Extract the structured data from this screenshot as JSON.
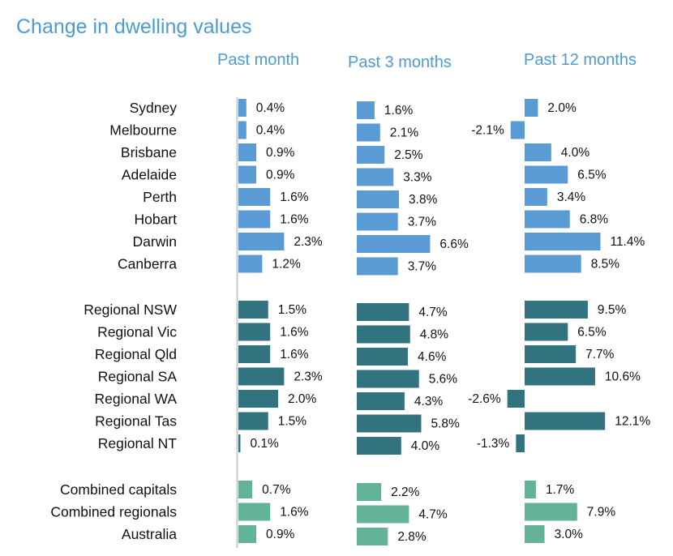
{
  "chart_data": {
    "type": "bar",
    "title": "Change in dwelling values",
    "panels": [
      "Past month",
      "Past 3 months",
      "Past 12 months"
    ],
    "groups": [
      {
        "color": "#5b9bd5",
        "rows": [
          {
            "label": "Sydney",
            "values": [
              0.4,
              1.6,
              2.0
            ],
            "labels": [
              "0.4%",
              "1.6%",
              "2.0%"
            ]
          },
          {
            "label": "Melbourne",
            "values": [
              0.4,
              2.1,
              -2.1
            ],
            "labels": [
              "0.4%",
              "2.1%",
              "-2.1%"
            ]
          },
          {
            "label": "Brisbane",
            "values": [
              0.9,
              2.5,
              4.0
            ],
            "labels": [
              "0.9%",
              "2.5%",
              "4.0%"
            ]
          },
          {
            "label": "Adelaide",
            "values": [
              0.9,
              3.3,
              6.5
            ],
            "labels": [
              "0.9%",
              "3.3%",
              "6.5%"
            ]
          },
          {
            "label": "Perth",
            "values": [
              1.6,
              3.8,
              3.4
            ],
            "labels": [
              "1.6%",
              "3.8%",
              "3.4%"
            ]
          },
          {
            "label": "Hobart",
            "values": [
              1.6,
              3.7,
              6.8
            ],
            "labels": [
              "1.6%",
              "3.7%",
              "6.8%"
            ]
          },
          {
            "label": "Darwin",
            "values": [
              2.3,
              6.6,
              11.4
            ],
            "labels": [
              "2.3%",
              "6.6%",
              "11.4%"
            ]
          },
          {
            "label": "Canberra",
            "values": [
              1.2,
              3.7,
              8.5
            ],
            "labels": [
              "1.2%",
              "3.7%",
              "8.5%"
            ]
          }
        ]
      },
      {
        "color": "#31737f",
        "rows": [
          {
            "label": "Regional NSW",
            "values": [
              1.5,
              4.7,
              9.5
            ],
            "labels": [
              "1.5%",
              "4.7%",
              "9.5%"
            ]
          },
          {
            "label": "Regional Vic",
            "values": [
              1.6,
              4.8,
              6.5
            ],
            "labels": [
              "1.6%",
              "4.8%",
              "6.5%"
            ]
          },
          {
            "label": "Regional Qld",
            "values": [
              1.6,
              4.6,
              7.7
            ],
            "labels": [
              "1.6%",
              "4.6%",
              "7.7%"
            ]
          },
          {
            "label": "Regional SA",
            "values": [
              2.3,
              5.6,
              10.6
            ],
            "labels": [
              "2.3%",
              "5.6%",
              "10.6%"
            ]
          },
          {
            "label": "Regional WA",
            "values": [
              2.0,
              4.3,
              -2.6
            ],
            "labels": [
              "2.0%",
              "4.3%",
              "-2.6%"
            ]
          },
          {
            "label": "Regional Tas",
            "values": [
              1.5,
              5.8,
              12.1
            ],
            "labels": [
              "1.5%",
              "5.8%",
              "12.1%"
            ]
          },
          {
            "label": "Regional NT",
            "values": [
              0.1,
              4.0,
              -1.3
            ],
            "labels": [
              "0.1%",
              "4.0%",
              "-1.3%"
            ]
          }
        ]
      },
      {
        "color": "#63b396",
        "rows": [
          {
            "label": "Combined capitals",
            "values": [
              0.7,
              2.2,
              1.7
            ],
            "labels": [
              "0.7%",
              "2.2%",
              "1.7%"
            ]
          },
          {
            "label": "Combined regionals",
            "values": [
              1.6,
              4.7,
              7.9
            ],
            "labels": [
              "1.6%",
              "4.7%",
              "7.9%"
            ]
          },
          {
            "label": "Australia",
            "values": [
              0.9,
              2.8,
              3.0
            ],
            "labels": [
              "0.9%",
              "2.8%",
              "3.0%"
            ]
          }
        ]
      }
    ]
  }
}
